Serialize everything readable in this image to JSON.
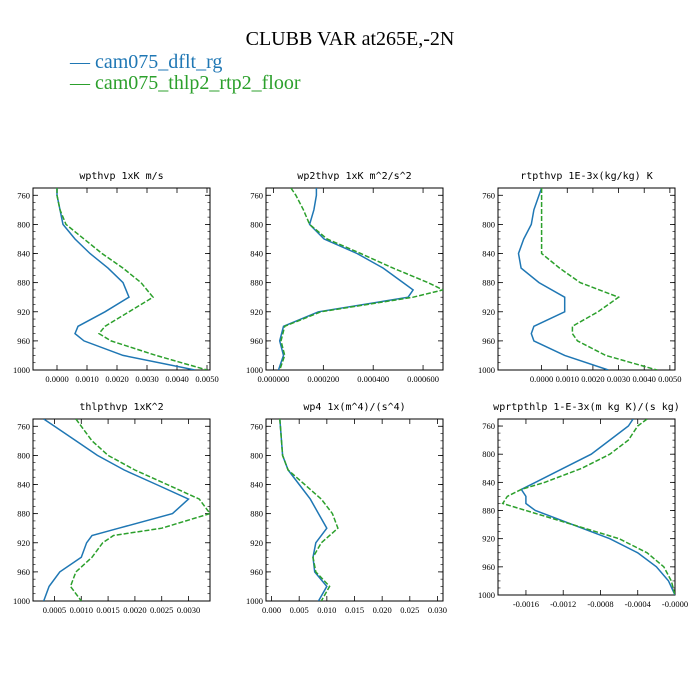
{
  "title": "CLUBB VAR at265E,-2N",
  "legend": [
    {
      "label": "— cam075_dflt_rg",
      "color": "#1f77b4"
    },
    {
      "label": "— cam075_thlp2_rtp2_floor",
      "color": "#2ca02c"
    }
  ],
  "chart_data": [
    {
      "type": "line",
      "title": "wpthvp  1xK m/s",
      "ylim": [
        1000,
        750
      ],
      "yticks": [
        "760",
        "800",
        "840",
        "880",
        "920",
        "960",
        "1000"
      ],
      "xlim": [
        -0.0008,
        0.0051
      ],
      "xticks": [
        "0.0000",
        "0.0010",
        "0.0020",
        "0.0030",
        "0.0040",
        "0.0050"
      ],
      "y": [
        750,
        760,
        780,
        800,
        820,
        840,
        860,
        880,
        900,
        920,
        940,
        950,
        960,
        980,
        1000
      ],
      "series": [
        {
          "name": "cam075_dflt_rg",
          "color": "#1f77b4",
          "dash": "",
          "values": [
            0.0,
            0.0,
            0.0001,
            0.0002,
            0.0006,
            0.0011,
            0.0017,
            0.0022,
            0.0024,
            0.0016,
            0.0007,
            0.0006,
            0.0009,
            0.0022,
            0.0046
          ]
        },
        {
          "name": "cam075_thlp2_rtp2_floor",
          "color": "#2ca02c",
          "dash": "5,2",
          "values": [
            0.0,
            0.0,
            0.0001,
            0.0003,
            0.0009,
            0.0015,
            0.0022,
            0.0028,
            0.0032,
            0.0024,
            0.0016,
            0.0014,
            0.0018,
            0.0033,
            0.005
          ]
        }
      ]
    },
    {
      "type": "line",
      "title": "wp2thvp  1xK m^2/s^2",
      "ylim": [
        1000,
        750
      ],
      "yticks": [
        "760",
        "800",
        "840",
        "880",
        "920",
        "960",
        "1000"
      ],
      "xlim": [
        -3e-05,
        0.00068
      ],
      "xticks": [
        "0.000000",
        "0.000200",
        "0.000400",
        "0.000600"
      ],
      "y": [
        750,
        760,
        780,
        800,
        820,
        840,
        860,
        880,
        890,
        900,
        920,
        940,
        960,
        980,
        1000
      ],
      "series": [
        {
          "name": "cam075_dflt_rg",
          "color": "#1f77b4",
          "dash": "",
          "values": [
            0.000172,
            0.000172,
            0.000162,
            0.000145,
            0.000203,
            0.000335,
            0.00044,
            0.00052,
            0.00056,
            0.00054,
            0.00018,
            4e-05,
            2.5e-05,
            4e-05,
            2e-05
          ]
        },
        {
          "name": "cam075_thlp2_rtp2_floor",
          "color": "#2ca02c",
          "dash": "5,2",
          "values": [
            7e-05,
            9e-05,
            0.00012,
            0.000145,
            0.000215,
            0.00035,
            0.00048,
            0.00062,
            0.00068,
            0.00056,
            0.00019,
            4.5e-05,
            3e-05,
            4.5e-05,
            2.5e-05
          ]
        }
      ]
    },
    {
      "type": "line",
      "title": "rtpthvp  1E-3x(kg/kg) K",
      "ylim": [
        1000,
        750
      ],
      "yticks": [
        "760",
        "800",
        "840",
        "880",
        "920",
        "960",
        "1000"
      ],
      "xlim": [
        -0.0017,
        0.0052
      ],
      "xticks": [
        "0.0000",
        "0.0010",
        "0.0020",
        "0.0030",
        "0.0040",
        "0.0050"
      ],
      "y": [
        750,
        760,
        780,
        800,
        820,
        840,
        860,
        880,
        900,
        920,
        940,
        950,
        960,
        980,
        1000
      ],
      "series": [
        {
          "name": "cam075_dflt_rg",
          "color": "#1f77b4",
          "dash": "",
          "values": [
            0.0,
            -0.0001,
            -0.0003,
            -0.0004,
            -0.0007,
            -0.0009,
            -0.0008,
            -0.0001,
            0.0009,
            0.0009,
            -0.0003,
            -0.0004,
            -0.0003,
            0.0009,
            0.0026
          ]
        },
        {
          "name": "cam075_thlp2_rtp2_floor",
          "color": "#2ca02c",
          "dash": "5,2",
          "values": [
            0.0,
            0.0,
            0.0,
            0.0,
            0.0,
            0.0,
            0.0007,
            0.0015,
            0.003,
            0.0022,
            0.0012,
            0.0012,
            0.0014,
            0.0025,
            0.0045
          ]
        }
      ]
    },
    {
      "type": "line",
      "title": "thlpthvp  1xK^2",
      "ylim": [
        1000,
        750
      ],
      "yticks": [
        "760",
        "800",
        "840",
        "880",
        "920",
        "960",
        "1000"
      ],
      "xlim": [
        0.0001,
        0.0034
      ],
      "xticks": [
        "0.0005",
        "0.0010",
        "0.0015",
        "0.0020",
        "0.0025",
        "0.0030"
      ],
      "y": [
        750,
        760,
        780,
        800,
        820,
        840,
        860,
        880,
        900,
        910,
        920,
        940,
        960,
        980,
        1000
      ],
      "series": [
        {
          "name": "cam075_dflt_rg",
          "color": "#1f77b4",
          "dash": "",
          "values": [
            0.0003,
            0.0005,
            0.0009,
            0.0013,
            0.0018,
            0.0024,
            0.003,
            0.0027,
            0.0017,
            0.0012,
            0.0011,
            0.001,
            0.0006,
            0.0004,
            0.0003
          ]
        },
        {
          "name": "cam075_thlp2_rtp2_floor",
          "color": "#2ca02c",
          "dash": "5,2",
          "values": [
            0.0009,
            0.001,
            0.0012,
            0.0015,
            0.002,
            0.0026,
            0.0032,
            0.0034,
            0.0025,
            0.0016,
            0.0014,
            0.0012,
            0.0009,
            0.0008,
            0.001
          ]
        }
      ]
    },
    {
      "type": "line",
      "title": "wp4  1x(m^4)/(s^4)",
      "ylim": [
        1000,
        750
      ],
      "yticks": [
        "760",
        "800",
        "840",
        "880",
        "920",
        "960",
        "1000"
      ],
      "xlim": [
        -0.001,
        0.031
      ],
      "xticks": [
        "0.000",
        "0.005",
        "0.010",
        "0.015",
        "0.020",
        "0.025",
        "0.030"
      ],
      "y": [
        750,
        760,
        780,
        800,
        820,
        840,
        860,
        880,
        900,
        920,
        940,
        960,
        980,
        1000
      ],
      "series": [
        {
          "name": "cam075_dflt_rg",
          "color": "#1f77b4",
          "dash": "",
          "values": [
            0.0015,
            0.0016,
            0.0018,
            0.002,
            0.003,
            0.005,
            0.007,
            0.0085,
            0.01,
            0.008,
            0.0075,
            0.0078,
            0.01,
            0.0085
          ]
        },
        {
          "name": "cam075_thlp2_rtp2_floor",
          "color": "#2ca02c",
          "dash": "5,2",
          "values": [
            0.0015,
            0.0016,
            0.0018,
            0.002,
            0.003,
            0.006,
            0.009,
            0.011,
            0.012,
            0.009,
            0.0075,
            0.008,
            0.0105,
            0.009
          ]
        }
      ]
    },
    {
      "type": "line",
      "title": "wprtpthlp  1-E-3x(m kg K)/(s kg)",
      "ylim": [
        1000,
        750
      ],
      "yticks": [
        "760",
        "800",
        "840",
        "880",
        "920",
        "960",
        "1000"
      ],
      "xlim": [
        -0.0019,
        0.0
      ],
      "xticks": [
        "-0.0016",
        "-0.0012",
        "-0.0008",
        "-0.0004",
        "-0.0000"
      ],
      "y": [
        750,
        760,
        780,
        800,
        820,
        840,
        850,
        860,
        870,
        880,
        900,
        920,
        940,
        960,
        980,
        1000
      ],
      "series": [
        {
          "name": "cam075_dflt_rg",
          "color": "#1f77b4",
          "dash": "",
          "values": [
            -0.00045,
            -0.0005,
            -0.0007,
            -0.0009,
            -0.0012,
            -0.0015,
            -0.00165,
            -0.0016,
            -0.0016,
            -0.0015,
            -0.0011,
            -0.0007,
            -0.0004,
            -0.0002,
            -7e-05,
            0.0
          ]
        },
        {
          "name": "cam075_thlp2_rtp2_floor",
          "color": "#2ca02c",
          "dash": "5,2",
          "values": [
            -0.0003,
            -0.0004,
            -0.0005,
            -0.0007,
            -0.001,
            -0.0014,
            -0.00165,
            -0.0018,
            -0.00185,
            -0.0016,
            -0.0011,
            -0.0006,
            -0.0003,
            -0.00012,
            -4e-05,
            0.0
          ]
        }
      ]
    }
  ]
}
